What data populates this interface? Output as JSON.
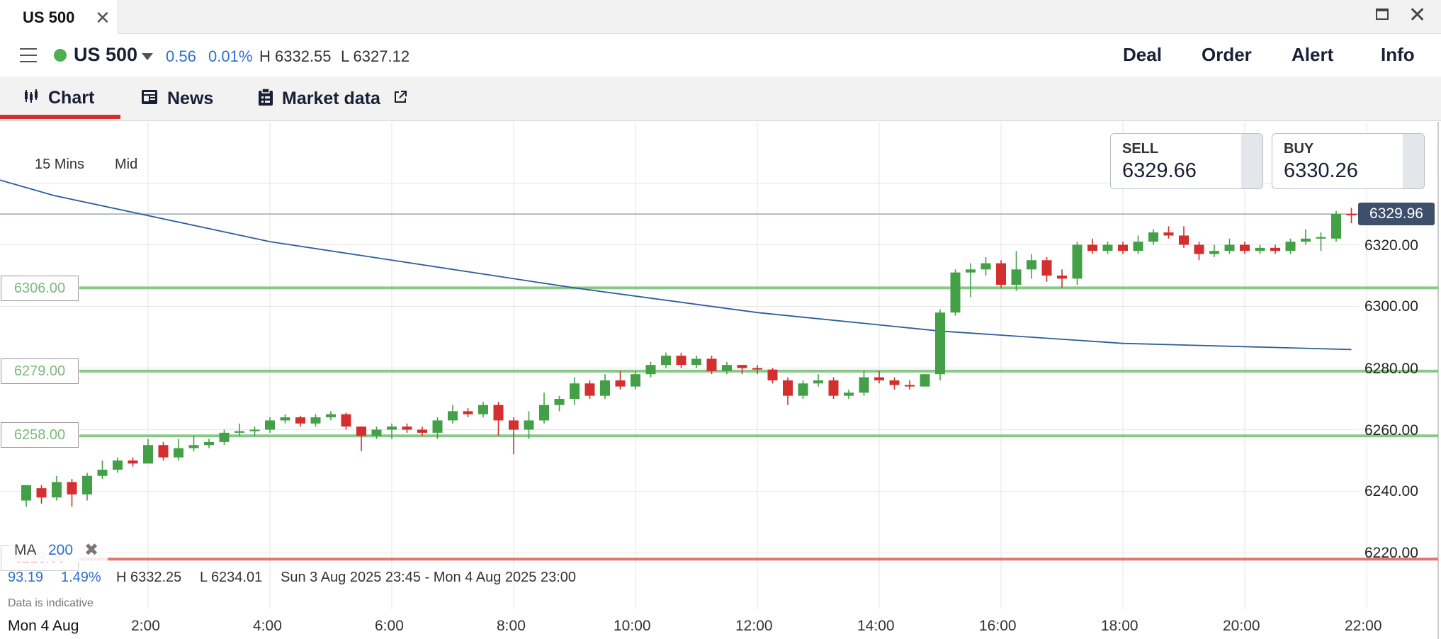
{
  "window": {
    "tab_title": "US 500"
  },
  "header": {
    "instrument": "US 500",
    "change": "0.56",
    "change_pct": "0.01%",
    "high": "H 6332.55",
    "low": "L 6327.12",
    "buttons": [
      "Deal",
      "Order",
      "Alert",
      "Info"
    ]
  },
  "tabs": [
    {
      "label": "Chart",
      "icon": "candlestick-chart-icon",
      "active": true
    },
    {
      "label": "News",
      "icon": "newspaper-icon"
    },
    {
      "label": "Market data",
      "icon": "clipboard-icon",
      "external": "external-link-icon"
    }
  ],
  "chart_controls": {
    "timeframe": "15 Mins",
    "price_type": "Mid"
  },
  "quotes": {
    "sell_label": "SELL",
    "sell": "6329.66",
    "buy_label": "BUY",
    "buy": "6330.26"
  },
  "current_price": "6329.96",
  "levels": [
    {
      "label": "6306.00",
      "value": 6306,
      "color": "#7cc47c"
    },
    {
      "label": "6279.00",
      "value": 6279,
      "color": "#7cc47c"
    },
    {
      "label": "6258.00",
      "value": 6258,
      "color": "#7cc47c"
    },
    {
      "label": "6218.00",
      "value": 6218,
      "color": "#e06666"
    }
  ],
  "indicator": {
    "name": "MA",
    "period": "200"
  },
  "stats": {
    "change": "93.19",
    "change_pct": "1.49%",
    "high": "H 6332.25",
    "low": "L 6234.01",
    "range": "Sun 3 Aug 2025 23:45 - Mon 4 Aug 2025 23:00"
  },
  "footnote": "Data is indicative",
  "date_label": "Mon 4 Aug",
  "colors": {
    "up": "#43a047",
    "down": "#d32f2f",
    "ma_line": "#2f5d9a",
    "accent": "#d32f2f"
  },
  "chart_data": {
    "type": "candlestick",
    "interval": "15 Mins",
    "y_ticks": [
      "6220.00",
      "6240.00",
      "6260.00",
      "6280.00",
      "6300.00",
      "6320.00"
    ],
    "x_ticks": [
      "2:00",
      "4:00",
      "6:00",
      "8:00",
      "10:00",
      "12:00",
      "14:00",
      "16:00",
      "18:00",
      "20:00",
      "22:00"
    ],
    "ylim": [
      6208,
      6347
    ],
    "x_range_hours": [
      0.45,
      22.3
    ],
    "candles": [
      [
        0.0,
        6237.0,
        6242.0,
        6242.0,
        6235.0
      ],
      [
        0.25,
        6241.0,
        6238.0,
        6242.0,
        6236.0
      ],
      [
        0.5,
        6238.0,
        6243.0,
        6245.0,
        6237.0
      ],
      [
        0.75,
        6243.0,
        6239.0,
        6244.0,
        6235.0
      ],
      [
        1.0,
        6239.0,
        6245.0,
        6246.0,
        6237.0
      ],
      [
        1.25,
        6245.0,
        6247.0,
        6250.0,
        6244.0
      ],
      [
        1.5,
        6247.0,
        6250.0,
        6251.0,
        6246.0
      ],
      [
        1.75,
        6250.0,
        6249.0,
        6251.0,
        6248.0
      ],
      [
        2.0,
        6249.0,
        6255.0,
        6257.0,
        6249.0
      ],
      [
        2.25,
        6255.0,
        6251.0,
        6256.0,
        6250.0
      ],
      [
        2.5,
        6251.0,
        6254.0,
        6257.0,
        6250.0
      ],
      [
        2.75,
        6254.0,
        6255.0,
        6258.0,
        6253.0
      ],
      [
        3.0,
        6255.0,
        6256.0,
        6257.0,
        6254.0
      ],
      [
        3.25,
        6256.0,
        6259.0,
        6260.0,
        6255.0
      ],
      [
        3.5,
        6259.0,
        6259.5,
        6262.0,
        6258.0
      ],
      [
        3.75,
        6259.5,
        6260.0,
        6261.0,
        6258.0
      ],
      [
        4.0,
        6260.0,
        6263.0,
        6264.0,
        6259.0
      ],
      [
        4.25,
        6263.0,
        6264.0,
        6265.0,
        6262.0
      ],
      [
        4.5,
        6264.0,
        6262.0,
        6264.5,
        6261.0
      ],
      [
        4.75,
        6262.0,
        6264.0,
        6265.0,
        6261.0
      ],
      [
        5.0,
        6264.0,
        6265.0,
        6266.0,
        6263.0
      ],
      [
        5.25,
        6265.0,
        6261.0,
        6265.5,
        6260.0
      ],
      [
        5.5,
        6261.0,
        6258.0,
        6261.0,
        6253.0
      ],
      [
        5.75,
        6258.0,
        6260.0,
        6261.0,
        6257.0
      ],
      [
        6.0,
        6260.0,
        6261.0,
        6262.0,
        6257.0
      ],
      [
        6.25,
        6261.0,
        6260.0,
        6262.0,
        6259.0
      ],
      [
        6.5,
        6260.0,
        6259.0,
        6261.0,
        6258.0
      ],
      [
        6.75,
        6259.0,
        6263.0,
        6264.0,
        6257.0
      ],
      [
        7.0,
        6263.0,
        6266.0,
        6268.0,
        6262.0
      ],
      [
        7.25,
        6266.0,
        6265.0,
        6267.0,
        6264.0
      ],
      [
        7.5,
        6265.0,
        6268.0,
        6269.0,
        6264.0
      ],
      [
        7.75,
        6268.0,
        6263.0,
        6269.0,
        6258.0
      ],
      [
        8.0,
        6263.0,
        6260.0,
        6264.0,
        6252.0
      ],
      [
        8.25,
        6260.0,
        6263.0,
        6266.0,
        6257.0
      ],
      [
        8.5,
        6263.0,
        6268.0,
        6272.0,
        6262.0
      ],
      [
        8.75,
        6268.0,
        6270.0,
        6271.0,
        6266.0
      ],
      [
        9.0,
        6270.0,
        6275.0,
        6277.0,
        6268.0
      ],
      [
        9.25,
        6275.0,
        6271.0,
        6276.0,
        6270.0
      ],
      [
        9.5,
        6271.0,
        6276.0,
        6278.0,
        6270.0
      ],
      [
        9.75,
        6276.0,
        6274.0,
        6279.0,
        6273.0
      ],
      [
        10.0,
        6274.0,
        6278.0,
        6279.0,
        6273.0
      ],
      [
        10.25,
        6278.0,
        6281.0,
        6282.0,
        6277.0
      ],
      [
        10.5,
        6281.0,
        6284.0,
        6285.0,
        6280.0
      ],
      [
        10.75,
        6284.0,
        6281.0,
        6285.0,
        6280.0
      ],
      [
        11.0,
        6281.0,
        6283.0,
        6284.0,
        6280.0
      ],
      [
        11.25,
        6283.0,
        6279.0,
        6284.0,
        6278.0
      ],
      [
        11.5,
        6279.0,
        6281.0,
        6282.0,
        6278.0
      ],
      [
        11.75,
        6281.0,
        6280.0,
        6281.0,
        6278.0
      ],
      [
        12.0,
        6280.0,
        6279.5,
        6281.0,
        6278.0
      ],
      [
        12.25,
        6279.5,
        6276.0,
        6280.0,
        6275.0
      ],
      [
        12.5,
        6276.0,
        6271.0,
        6277.0,
        6268.0
      ],
      [
        12.75,
        6271.0,
        6275.0,
        6276.0,
        6270.0
      ],
      [
        13.0,
        6275.0,
        6276.0,
        6278.0,
        6274.0
      ],
      [
        13.25,
        6276.0,
        6271.0,
        6277.0,
        6270.0
      ],
      [
        13.5,
        6271.0,
        6272.0,
        6273.0,
        6270.0
      ],
      [
        13.75,
        6272.0,
        6277.0,
        6279.0,
        6271.0
      ],
      [
        14.0,
        6277.0,
        6276.0,
        6279.0,
        6275.0
      ],
      [
        14.25,
        6276.0,
        6274.5,
        6277.0,
        6273.0
      ],
      [
        14.5,
        6274.5,
        6274.0,
        6276.0,
        6273.0
      ],
      [
        14.75,
        6274.0,
        6278.0,
        6278.0,
        6274.0
      ],
      [
        15.0,
        6278.0,
        6298.0,
        6299.0,
        6276.0
      ],
      [
        15.25,
        6298.0,
        6311.0,
        6312.0,
        6297.0
      ],
      [
        15.5,
        6311.0,
        6312.0,
        6314.0,
        6303.0
      ],
      [
        15.75,
        6312.0,
        6314.0,
        6316.0,
        6310.0
      ],
      [
        16.0,
        6314.0,
        6307.0,
        6315.0,
        6306.0
      ],
      [
        16.25,
        6307.0,
        6312.0,
        6318.0,
        6305.0
      ],
      [
        16.5,
        6312.0,
        6315.0,
        6317.0,
        6309.0
      ],
      [
        16.75,
        6315.0,
        6310.0,
        6316.0,
        6308.0
      ],
      [
        17.0,
        6310.0,
        6309.0,
        6312.0,
        6306.0
      ],
      [
        17.25,
        6309.0,
        6320.0,
        6321.0,
        6307.0
      ],
      [
        17.5,
        6320.0,
        6318.0,
        6322.0,
        6317.0
      ],
      [
        17.75,
        6318.0,
        6320.0,
        6321.0,
        6317.0
      ],
      [
        18.0,
        6320.0,
        6318.0,
        6321.0,
        6317.0
      ],
      [
        18.25,
        6318.0,
        6321.0,
        6323.0,
        6317.0
      ],
      [
        18.5,
        6321.0,
        6324.0,
        6325.0,
        6320.0
      ],
      [
        18.75,
        6324.0,
        6323.0,
        6326.0,
        6322.0
      ],
      [
        19.0,
        6323.0,
        6320.0,
        6326.0,
        6319.0
      ],
      [
        19.25,
        6320.0,
        6317.0,
        6321.0,
        6315.0
      ],
      [
        19.5,
        6317.0,
        6318.0,
        6320.0,
        6316.0
      ],
      [
        19.75,
        6318.0,
        6320.0,
        6322.0,
        6317.0
      ],
      [
        20.0,
        6320.0,
        6318.0,
        6321.0,
        6317.0
      ],
      [
        20.25,
        6318.0,
        6319.0,
        6320.0,
        6317.0
      ],
      [
        20.5,
        6319.0,
        6318.0,
        6320.0,
        6317.0
      ],
      [
        20.75,
        6318.0,
        6321.0,
        6322.0,
        6317.0
      ],
      [
        21.0,
        6321.0,
        6322.0,
        6325.0,
        6320.0
      ],
      [
        21.25,
        6322.0,
        6322.5,
        6324.0,
        6318.0
      ],
      [
        21.5,
        6322.0,
        6330.0,
        6331.0,
        6321.0
      ],
      [
        21.75,
        6330.0,
        6329.96,
        6332.0,
        6327.0
      ]
    ],
    "ma200": [
      [
        0.45,
        6336
      ],
      [
        4.0,
        6321
      ],
      [
        9.0,
        6306
      ],
      [
        12.0,
        6298
      ],
      [
        15.0,
        6292
      ],
      [
        18.0,
        6288
      ],
      [
        21.75,
        6286
      ]
    ]
  }
}
